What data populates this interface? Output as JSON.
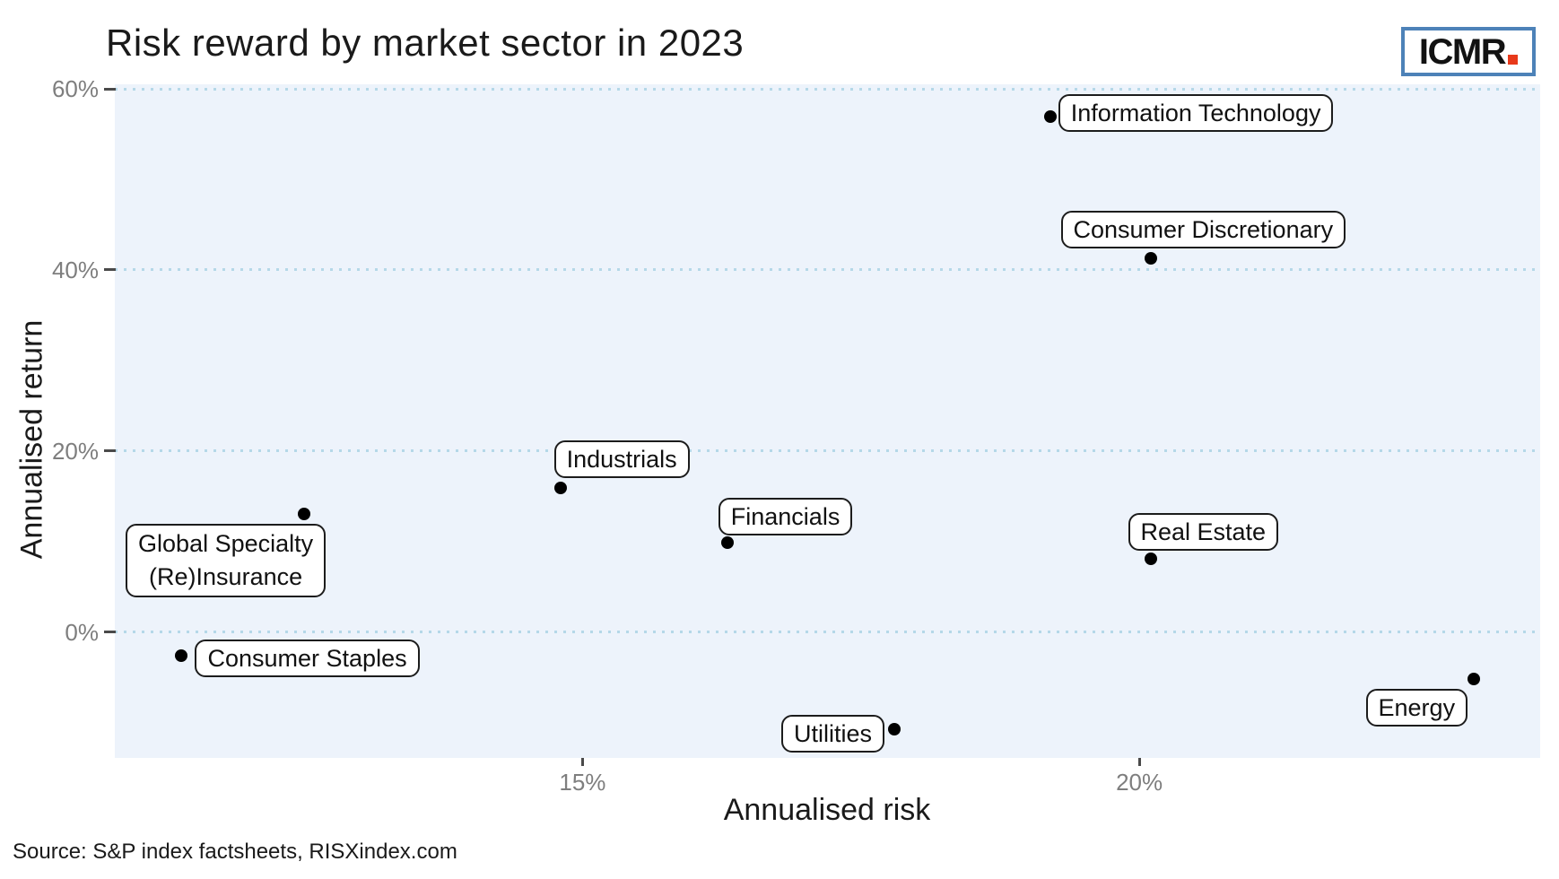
{
  "title": "Risk reward by market sector in 2023",
  "source": "Source: S&P index factsheets, RISXindex.com",
  "logo": {
    "text": "ICMR",
    "border_color": "#4d82b8",
    "dot_color": "#e8391a",
    "text_color": "#121212"
  },
  "chart_data": {
    "type": "scatter",
    "title": "Risk reward by market sector in 2023",
    "xlabel": "Annualised risk",
    "ylabel": "Annualised return",
    "xlim": [
      10.8,
      23.6
    ],
    "ylim": [
      -13.9,
      60.5
    ],
    "x_ticks": [
      {
        "value": 15,
        "label": "15%"
      },
      {
        "value": 20,
        "label": "20%"
      }
    ],
    "y_ticks": [
      {
        "value": 0,
        "label": "0%"
      },
      {
        "value": 20,
        "label": "20%"
      },
      {
        "value": 40,
        "label": "40%"
      },
      {
        "value": 60,
        "label": "60%"
      }
    ],
    "grid": "horizontal-dotted",
    "legend": "none",
    "panel_bg": "#edf3fb",
    "grid_color": "#b5d8e8",
    "point_color": "#000000",
    "tick_color": "#4a4a4a",
    "tick_label_color": "#7e7e7e",
    "points": [
      {
        "label": "Information Technology",
        "risk": 19.2,
        "return": 56.9,
        "label_offset": [
          9,
          -25
        ]
      },
      {
        "label": "Consumer Discretionary",
        "risk": 20.1,
        "return": 41.3,
        "label_offset": [
          -100,
          -53
        ]
      },
      {
        "label": "Industrials",
        "risk": 14.8,
        "return": 15.9,
        "label_offset": [
          -7,
          -53
        ]
      },
      {
        "label": "Global Specialty\n(Re)Insurance",
        "risk": 12.5,
        "return": 13.0,
        "label_offset": [
          -199,
          11
        ]
      },
      {
        "label": "Financials",
        "risk": 16.3,
        "return": 9.9,
        "label_offset": [
          -10,
          -50
        ]
      },
      {
        "label": "Real Estate",
        "risk": 20.1,
        "return": 8.1,
        "label_offset": [
          -25,
          -51
        ]
      },
      {
        "label": "Consumer Staples",
        "risk": 11.4,
        "return": -2.6,
        "label_offset": [
          15,
          -18
        ]
      },
      {
        "label": "Energy",
        "risk": 23.0,
        "return": -5.2,
        "label_offset": [
          -120,
          11
        ]
      },
      {
        "label": "Utilities",
        "risk": 17.8,
        "return": -10.7,
        "label_offset": [
          -126,
          -16
        ]
      }
    ]
  }
}
